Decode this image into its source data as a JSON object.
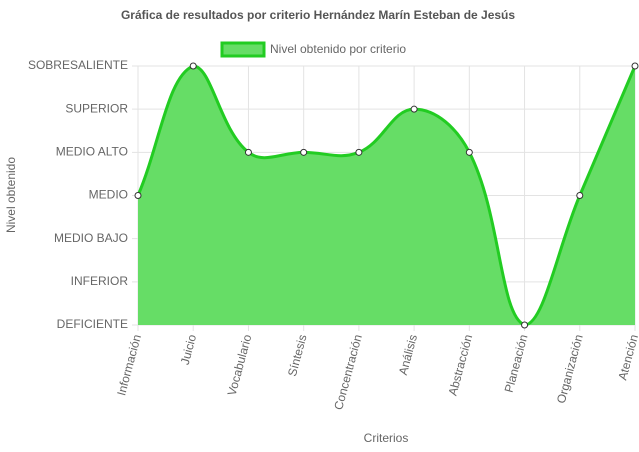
{
  "chart_data": {
    "type": "area",
    "title": "Gráfica de resultados por criterio Hernández Marín Esteban de Jesús",
    "x_label": "Criterios",
    "y_label": "Nivel obtenido",
    "categories": [
      "Información",
      "Juicio",
      "Vocabulario",
      "Síntesis",
      "Concentración",
      "Análisis",
      "Abstracción",
      "Planeación",
      "Organización",
      "Atención"
    ],
    "series": [
      {
        "name": "Nivel obtenido por criterio",
        "color": "#22cc22",
        "fill": "#66dd66",
        "values": [
          3,
          6,
          4,
          4,
          4,
          5,
          4,
          0,
          3,
          6
        ]
      }
    ],
    "ylim": [
      0,
      6
    ],
    "yticks": [
      {
        "value": 0,
        "label": "DEFICIENTE"
      },
      {
        "value": 1,
        "label": "INFERIOR"
      },
      {
        "value": 2,
        "label": "MEDIO BAJO"
      },
      {
        "value": 3,
        "label": "MEDIO"
      },
      {
        "value": 4,
        "label": "MEDIO ALTO"
      },
      {
        "value": 5,
        "label": "SUPERIOR"
      },
      {
        "value": 6,
        "label": "SOBRESALIENTE"
      }
    ],
    "grid": true,
    "legend": "top"
  }
}
